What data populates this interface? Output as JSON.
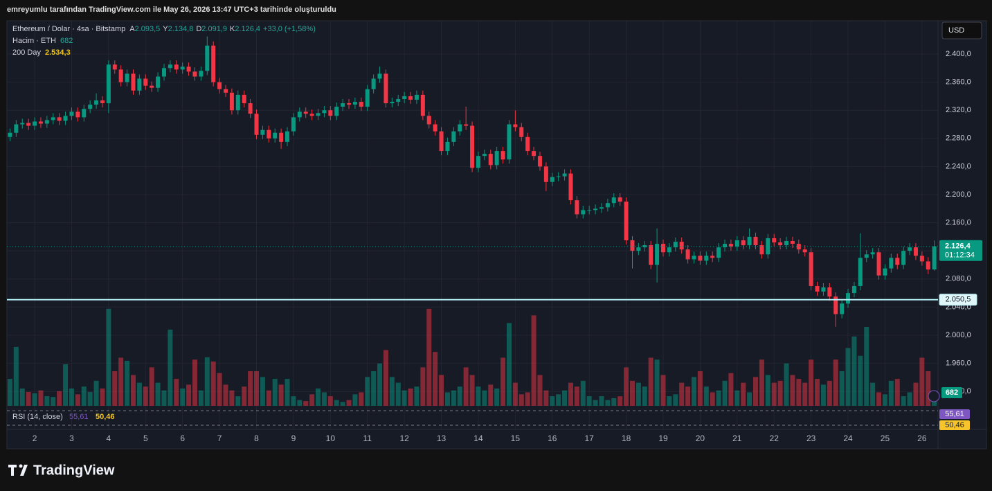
{
  "header": {
    "caption": "emreyumlu tarafından TradingView.com ile May 26, 2026 13:47 UTC+3 tarihinde oluşturuldu"
  },
  "legend": {
    "symbol": "Ethereum / Dolar · 4sa · Bitstamp",
    "o_label": "A",
    "o": "2.093,5",
    "h_label": "Y",
    "h": "2.134,8",
    "l_label": "D",
    "l": "2.091,9",
    "c_label": "K",
    "c": "2.126,4",
    "change": "+33,0 (+1,58%)",
    "volume_name": "Hacim · ETH",
    "volume": "682",
    "ma_name": "200 Day",
    "ma": "2.534,3"
  },
  "currency": "USD",
  "brand": "TradingView",
  "chart_data": {
    "type": "candlestick",
    "open": [
      2282,
      2288,
      2300,
      2302,
      2298,
      2304,
      2301,
      2306,
      2310,
      2305,
      2312,
      2318,
      2310,
      2322,
      2328,
      2334,
      2330,
      2385,
      2378,
      2360,
      2372,
      2348,
      2365,
      2355,
      2352,
      2368,
      2380,
      2385,
      2378,
      2382,
      2375,
      2368,
      2376,
      2412,
      2360,
      2350,
      2345,
      2320,
      2342,
      2330,
      2315,
      2285,
      2292,
      2280,
      2288,
      2275,
      2290,
      2310,
      2318,
      2315,
      2312,
      2316,
      2320,
      2312,
      2325,
      2330,
      2328,
      2332,
      2325,
      2350,
      2365,
      2372,
      2330,
      2332,
      2336,
      2340,
      2335,
      2342,
      2312,
      2300,
      2290,
      2262,
      2275,
      2290,
      2300,
      2298,
      2238,
      2255,
      2258,
      2242,
      2262,
      2250,
      2300,
      2296,
      2282,
      2262,
      2255,
      2240,
      2218,
      2225,
      2226,
      2230,
      2192,
      2172,
      2178,
      2178,
      2180,
      2182,
      2188,
      2196,
      2190,
      2135,
      2120,
      2125,
      2128,
      2100,
      2130,
      2118,
      2125,
      2133,
      2122,
      2108,
      2113,
      2106,
      2113,
      2110,
      2125,
      2130,
      2126,
      2135,
      2128,
      2140,
      2128,
      2115,
      2138,
      2132,
      2128,
      2134,
      2130,
      2122,
      2118,
      2070,
      2062,
      2068,
      2055,
      2030,
      2045,
      2060,
      2070,
      2110,
      2115,
      2118,
      2085,
      2095,
      2110,
      2100,
      2120,
      2125,
      2113,
      2105,
      2093.5
    ],
    "high": [
      2294,
      2306,
      2308,
      2308,
      2310,
      2310,
      2312,
      2316,
      2316,
      2318,
      2324,
      2324,
      2328,
      2334,
      2344,
      2340,
      2391,
      2391,
      2384,
      2378,
      2378,
      2371,
      2371,
      2361,
      2374,
      2386,
      2391,
      2391,
      2388,
      2388,
      2381,
      2382,
      2425,
      2418,
      2366,
      2356,
      2351,
      2348,
      2348,
      2336,
      2321,
      2298,
      2298,
      2294,
      2294,
      2296,
      2316,
      2324,
      2324,
      2321,
      2322,
      2326,
      2326,
      2331,
      2336,
      2336,
      2338,
      2338,
      2356,
      2371,
      2382,
      2378,
      2338,
      2342,
      2346,
      2346,
      2348,
      2348,
      2318,
      2306,
      2296,
      2281,
      2296,
      2306,
      2325,
      2304,
      2261,
      2264,
      2264,
      2268,
      2268,
      2306,
      2320,
      2302,
      2288,
      2268,
      2261,
      2246,
      2231,
      2232,
      2236,
      2236,
      2198,
      2184,
      2184,
      2186,
      2188,
      2194,
      2202,
      2202,
      2196,
      2141,
      2131,
      2134,
      2134,
      2152,
      2136,
      2131,
      2139,
      2139,
      2128,
      2119,
      2119,
      2119,
      2119,
      2131,
      2136,
      2136,
      2141,
      2141,
      2152,
      2146,
      2134,
      2144,
      2144,
      2138,
      2140,
      2140,
      2136,
      2128,
      2124,
      2076,
      2074,
      2074,
      2061,
      2051,
      2066,
      2076,
      2145,
      2121,
      2124,
      2124,
      2101,
      2116,
      2116,
      2126,
      2131,
      2131,
      2119,
      2111,
      2134.8
    ],
    "low": [
      2276,
      2282,
      2294,
      2292,
      2292,
      2295,
      2295,
      2300,
      2299,
      2299,
      2306,
      2304,
      2304,
      2316,
      2322,
      2324,
      2316,
      2372,
      2354,
      2354,
      2342,
      2342,
      2349,
      2346,
      2346,
      2362,
      2374,
      2372,
      2372,
      2369,
      2362,
      2362,
      2370,
      2354,
      2344,
      2339,
      2314,
      2314,
      2324,
      2309,
      2279,
      2279,
      2274,
      2274,
      2265,
      2269,
      2284,
      2304,
      2309,
      2306,
      2306,
      2310,
      2306,
      2306,
      2319,
      2322,
      2322,
      2319,
      2319,
      2344,
      2359,
      2324,
      2324,
      2326,
      2330,
      2329,
      2329,
      2306,
      2294,
      2284,
      2256,
      2256,
      2269,
      2284,
      2292,
      2232,
      2232,
      2249,
      2236,
      2236,
      2244,
      2244,
      2290,
      2276,
      2256,
      2249,
      2234,
      2205,
      2212,
      2219,
      2220,
      2186,
      2166,
      2166,
      2172,
      2172,
      2174,
      2176,
      2182,
      2184,
      2129,
      2095,
      2114,
      2119,
      2094,
      2075,
      2112,
      2112,
      2119,
      2116,
      2102,
      2102,
      2100,
      2100,
      2104,
      2104,
      2119,
      2120,
      2120,
      2122,
      2122,
      2122,
      2109,
      2109,
      2126,
      2122,
      2122,
      2124,
      2116,
      2112,
      2064,
      2056,
      2056,
      2049,
      2012,
      2024,
      2039,
      2054,
      2064,
      2104,
      2109,
      2079,
      2079,
      2089,
      2094,
      2094,
      2114,
      2107,
      2099,
      2087,
      2091.9
    ],
    "close": [
      2288,
      2300,
      2302,
      2298,
      2304,
      2301,
      2306,
      2310,
      2305,
      2312,
      2318,
      2310,
      2322,
      2328,
      2334,
      2330,
      2385,
      2378,
      2360,
      2372,
      2348,
      2365,
      2355,
      2352,
      2368,
      2380,
      2385,
      2378,
      2382,
      2375,
      2368,
      2376,
      2412,
      2360,
      2350,
      2345,
      2320,
      2342,
      2330,
      2315,
      2285,
      2292,
      2280,
      2288,
      2275,
      2290,
      2310,
      2318,
      2315,
      2312,
      2316,
      2320,
      2312,
      2325,
      2330,
      2328,
      2332,
      2325,
      2350,
      2365,
      2372,
      2330,
      2332,
      2336,
      2340,
      2335,
      2342,
      2312,
      2300,
      2290,
      2262,
      2275,
      2290,
      2300,
      2298,
      2238,
      2255,
      2258,
      2242,
      2262,
      2250,
      2300,
      2296,
      2282,
      2262,
      2255,
      2240,
      2218,
      2225,
      2226,
      2230,
      2192,
      2172,
      2178,
      2178,
      2180,
      2182,
      2188,
      2196,
      2190,
      2135,
      2120,
      2125,
      2128,
      2100,
      2130,
      2118,
      2125,
      2133,
      2122,
      2108,
      2113,
      2106,
      2113,
      2110,
      2125,
      2130,
      2126,
      2135,
      2128,
      2140,
      2128,
      2115,
      2138,
      2132,
      2128,
      2134,
      2130,
      2122,
      2118,
      2070,
      2062,
      2068,
      2055,
      2030,
      2045,
      2060,
      2070,
      2110,
      2115,
      2118,
      2085,
      2095,
      2110,
      2100,
      2120,
      2125,
      2113,
      2105,
      2093.5,
      2126.4
    ],
    "volume": [
      1400,
      3060,
      900,
      720,
      650,
      800,
      500,
      460,
      760,
      2160,
      900,
      600,
      1000,
      720,
      1300,
      900,
      5040,
      1800,
      2500,
      2340,
      1600,
      1200,
      1000,
      2000,
      1200,
      800,
      3960,
      1400,
      900,
      1100,
      2400,
      800,
      2520,
      2300,
      1700,
      1100,
      800,
      500,
      1000,
      1800,
      1800,
      1500,
      800,
      1400,
      1100,
      1400,
      500,
      300,
      250,
      600,
      900,
      700,
      500,
      300,
      200,
      300,
      600,
      700,
      1500,
      1800,
      2200,
      2900,
      1500,
      1200,
      800,
      900,
      1000,
      2000,
      5040,
      2800,
      1600,
      700,
      800,
      1000,
      2000,
      1600,
      1000,
      800,
      1100,
      900,
      2500,
      4300,
      1200,
      600,
      700,
      4700,
      1600,
      800,
      500,
      600,
      800,
      1200,
      1000,
      1300,
      500,
      300,
      500,
      300,
      400,
      500,
      2000,
      1300,
      1200,
      1000,
      2500,
      2400,
      1600,
      500,
      600,
      1200,
      1000,
      1500,
      1800,
      1000,
      700,
      800,
      1300,
      1700,
      800,
      1200,
      700,
      1500,
      2400,
      1600,
      1200,
      1300,
      2200,
      1600,
      1400,
      1200,
      2400,
      1400,
      1100,
      1300,
      2400,
      1800,
      3000,
      3600,
      2600,
      4100,
      1200,
      700,
      600,
      1300,
      1400,
      500,
      700,
      1200,
      2500,
      1800,
      682
    ],
    "volume_label": "682",
    "last_label": "2.126,4",
    "countdown": "01:12:34",
    "up_color": "#089981",
    "down_color": "#f23645",
    "xlim": [
      -0.5,
      150.6
    ],
    "xticks": [
      {
        "value": 4,
        "label": "2"
      },
      {
        "value": 10,
        "label": "3"
      },
      {
        "value": 16,
        "label": "4"
      },
      {
        "value": 22,
        "label": "5"
      },
      {
        "value": 28,
        "label": "6"
      },
      {
        "value": 34,
        "label": "7"
      },
      {
        "value": 40,
        "label": "8"
      },
      {
        "value": 46,
        "label": "9"
      },
      {
        "value": 52,
        "label": "10"
      },
      {
        "value": 58,
        "label": "11"
      },
      {
        "value": 64,
        "label": "12"
      },
      {
        "value": 70,
        "label": "13"
      },
      {
        "value": 76,
        "label": "14"
      },
      {
        "value": 82,
        "label": "15"
      },
      {
        "value": 88,
        "label": "16"
      },
      {
        "value": 94,
        "label": "17"
      },
      {
        "value": 100,
        "label": "18"
      },
      {
        "value": 106,
        "label": "19"
      },
      {
        "value": 112,
        "label": "20"
      },
      {
        "value": 118,
        "label": "21"
      },
      {
        "value": 124,
        "label": "22"
      },
      {
        "value": 130,
        "label": "23"
      },
      {
        "value": 136,
        "label": "24"
      },
      {
        "value": 142,
        "label": "25"
      },
      {
        "value": 148,
        "label": "26"
      }
    ],
    "ylim": [
      1895.6,
      2447.3
    ],
    "yticks": [
      {
        "value": 1920,
        "label": "1.920,0"
      },
      {
        "value": 1960,
        "label": "1.960,0"
      },
      {
        "value": 2000,
        "label": "2.000,0"
      },
      {
        "value": 2040,
        "label": "2.040,0"
      },
      {
        "value": 2080,
        "label": "2.080,0"
      },
      {
        "value": 2120,
        "label": "2.120,0"
      },
      {
        "value": 2160,
        "label": "2.160,0"
      },
      {
        "value": 2200,
        "label": "2.200,0"
      },
      {
        "value": 2240,
        "label": "2.240,0"
      },
      {
        "value": 2280,
        "label": "2.280,0"
      },
      {
        "value": 2320,
        "label": "2.320,0"
      },
      {
        "value": 2360,
        "label": "2.360,0"
      },
      {
        "value": 2400,
        "label": "2.400,0"
      }
    ],
    "vlim": [
      0,
      20000
    ],
    "hline": {
      "value": 2050.5,
      "label": "2.050,5",
      "color": "#b2ebf2"
    },
    "grid": true,
    "rsi": {
      "label": "RSI (14, close)",
      "value": "55,61",
      "ma": "50,46",
      "color": "#7e57c2",
      "ma_color": "#f7c52b"
    }
  }
}
